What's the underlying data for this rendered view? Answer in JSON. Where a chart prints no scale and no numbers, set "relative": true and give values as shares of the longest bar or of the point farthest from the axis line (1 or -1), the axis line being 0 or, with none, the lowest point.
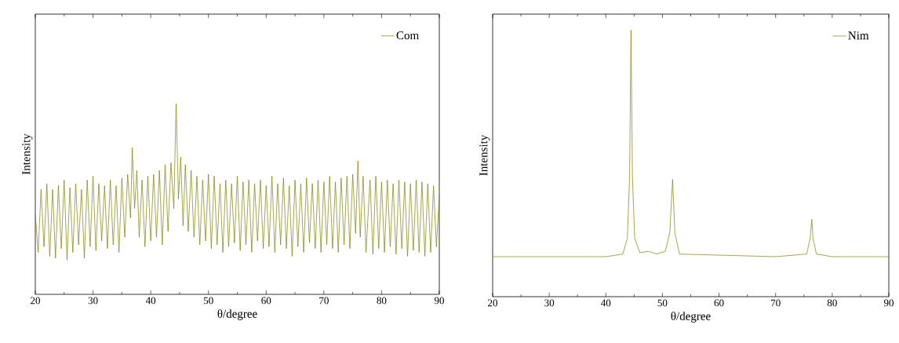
{
  "chart_data": [
    {
      "type": "line",
      "xlabel": "θ/degree",
      "ylabel": "Intensity",
      "relative": true,
      "xlim": [
        20,
        90
      ],
      "xticks": [
        20,
        30,
        40,
        50,
        60,
        70,
        80,
        90
      ],
      "legend": "top right",
      "series": [
        {
          "name": "Com",
          "color": "#808000",
          "x": [
            20,
            20.5,
            21,
            21.5,
            22,
            22.5,
            23,
            23.5,
            24,
            24.5,
            25,
            25.5,
            26,
            26.5,
            27,
            27.5,
            28,
            28.5,
            29,
            29.5,
            30,
            30.5,
            31,
            31.5,
            32,
            32.5,
            33,
            33.5,
            34,
            34.5,
            35,
            35.5,
            36,
            36.5,
            36.8,
            37.2,
            37.6,
            38,
            38.5,
            39,
            39.5,
            40,
            40.5,
            41,
            41.5,
            42,
            42.5,
            43,
            43.5,
            44,
            44.4,
            44.8,
            45.2,
            45.6,
            46,
            46.5,
            47,
            47.5,
            48,
            48.5,
            49,
            49.5,
            50,
            50.5,
            51,
            51.5,
            52,
            52.5,
            53,
            53.5,
            54,
            54.5,
            55,
            55.5,
            56,
            56.5,
            57,
            57.5,
            58,
            58.5,
            59,
            59.5,
            60,
            60.5,
            61,
            61.5,
            62,
            62.5,
            63,
            63.5,
            64,
            64.5,
            65,
            65.5,
            66,
            66.5,
            67,
            67.5,
            68,
            68.5,
            69,
            69.5,
            70,
            70.5,
            71,
            71.5,
            72,
            72.5,
            73,
            73.5,
            74,
            74.5,
            75,
            75.5,
            75.9,
            76.3,
            76.8,
            77.3,
            78,
            78.5,
            79,
            79.5,
            80,
            80.5,
            81,
            81.5,
            82,
            82.5,
            83,
            83.5,
            84,
            84.5,
            85,
            85.5,
            86,
            86.5,
            87,
            87.5,
            88,
            88.5,
            89,
            89.5,
            90
          ],
          "values": [
            0.42,
            0.22,
            0.55,
            0.25,
            0.58,
            0.2,
            0.55,
            0.19,
            0.57,
            0.24,
            0.6,
            0.18,
            0.56,
            0.22,
            0.58,
            0.26,
            0.55,
            0.19,
            0.6,
            0.25,
            0.62,
            0.23,
            0.58,
            0.28,
            0.57,
            0.24,
            0.6,
            0.26,
            0.57,
            0.22,
            0.61,
            0.3,
            0.63,
            0.4,
            0.77,
            0.45,
            0.65,
            0.3,
            0.6,
            0.25,
            0.62,
            0.28,
            0.63,
            0.3,
            0.65,
            0.26,
            0.68,
            0.33,
            0.69,
            0.45,
            1.0,
            0.5,
            0.72,
            0.36,
            0.68,
            0.33,
            0.65,
            0.3,
            0.62,
            0.26,
            0.6,
            0.28,
            0.63,
            0.24,
            0.62,
            0.26,
            0.58,
            0.22,
            0.6,
            0.25,
            0.58,
            0.27,
            0.62,
            0.23,
            0.59,
            0.26,
            0.6,
            0.22,
            0.58,
            0.28,
            0.6,
            0.24,
            0.57,
            0.25,
            0.62,
            0.22,
            0.58,
            0.26,
            0.61,
            0.24,
            0.57,
            0.2,
            0.6,
            0.25,
            0.58,
            0.22,
            0.61,
            0.27,
            0.58,
            0.24,
            0.6,
            0.22,
            0.59,
            0.26,
            0.62,
            0.24,
            0.59,
            0.22,
            0.61,
            0.26,
            0.62,
            0.24,
            0.63,
            0.32,
            0.7,
            0.3,
            0.62,
            0.22,
            0.6,
            0.21,
            0.62,
            0.24,
            0.59,
            0.22,
            0.6,
            0.25,
            0.58,
            0.21,
            0.6,
            0.24,
            0.59,
            0.2,
            0.58,
            0.23,
            0.6,
            0.22,
            0.59,
            0.2,
            0.58,
            0.22,
            0.57,
            0.25,
            0.52
          ]
        }
      ]
    },
    {
      "type": "line",
      "xlabel": "θ/degree",
      "ylabel": "Intensity",
      "relative": true,
      "xlim": [
        20,
        90
      ],
      "xticks": [
        20,
        30,
        40,
        50,
        60,
        70,
        80,
        90
      ],
      "legend": "top right",
      "series": [
        {
          "name": "Nim",
          "color": "#808000",
          "x": [
            20,
            40,
            43,
            43.8,
            44.2,
            44.45,
            44.7,
            45.1,
            46,
            47.5,
            49,
            50.5,
            51.3,
            51.8,
            52.2,
            53,
            70,
            75.5,
            76.1,
            76.4,
            76.6,
            77.2,
            80,
            90
          ],
          "values": [
            0.15,
            0.15,
            0.16,
            0.22,
            0.45,
            1.0,
            0.45,
            0.22,
            0.165,
            0.17,
            0.16,
            0.17,
            0.24,
            0.44,
            0.24,
            0.16,
            0.15,
            0.16,
            0.22,
            0.29,
            0.22,
            0.16,
            0.15,
            0.15
          ]
        }
      ]
    }
  ]
}
